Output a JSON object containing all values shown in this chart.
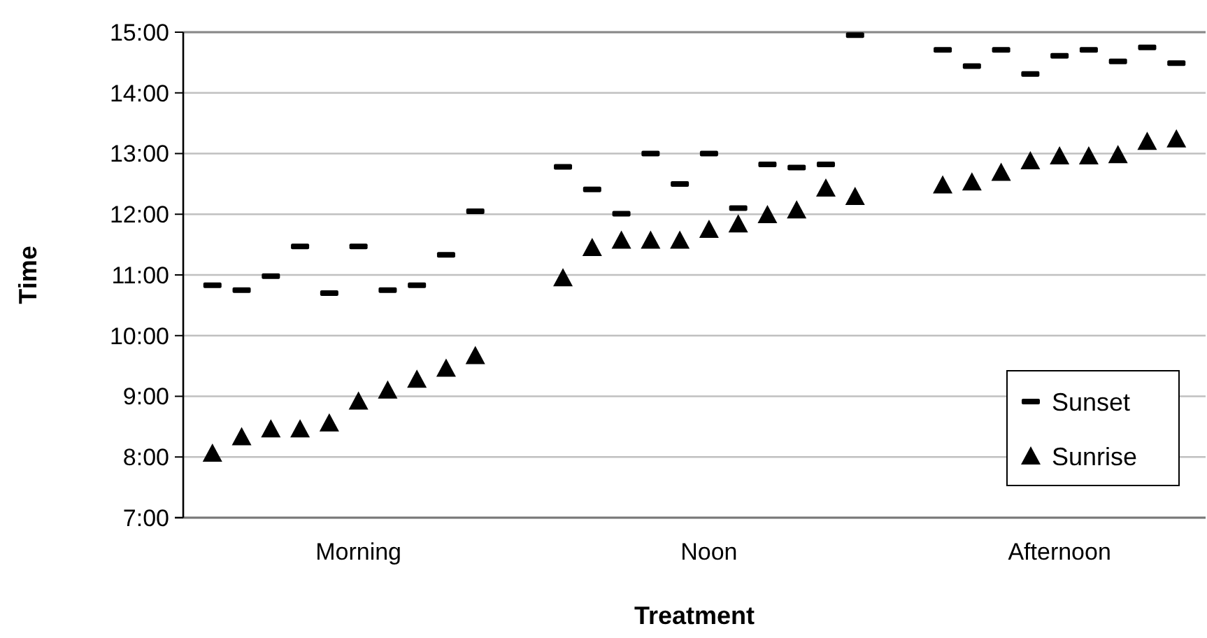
{
  "chart_data": {
    "type": "scatter",
    "xlabel": "Treatment",
    "ylabel": "Time",
    "categories": [
      null,
      null,
      null,
      null,
      null,
      "Morning",
      null,
      null,
      null,
      null,
      null,
      null,
      null,
      null,
      null,
      null,
      null,
      "Noon",
      null,
      null,
      null,
      null,
      null,
      null,
      null,
      null,
      null,
      null,
      null,
      "Afternoon",
      null,
      null,
      null,
      null
    ],
    "series": [
      {
        "name": "Sunset",
        "color": "#000000",
        "marker": "square",
        "values": [
          10.83,
          10.75,
          10.98,
          11.47,
          10.7,
          11.47,
          10.75,
          10.83,
          11.33,
          12.05,
          null,
          null,
          12.78,
          12.41,
          12.01,
          13.0,
          12.5,
          13.0,
          12.1,
          12.82,
          12.77,
          12.82,
          14.95,
          null,
          null,
          14.71,
          14.44,
          14.71,
          14.31,
          14.61,
          14.71,
          14.52,
          14.75,
          14.49
        ]
      },
      {
        "name": "Sunrise",
        "color": "#000000",
        "marker": "triangle",
        "values": [
          8.06,
          8.33,
          8.46,
          8.46,
          8.56,
          8.92,
          9.1,
          9.28,
          9.46,
          9.67,
          null,
          null,
          10.95,
          11.45,
          11.57,
          11.57,
          11.57,
          11.75,
          11.84,
          11.99,
          12.07,
          12.43,
          12.29,
          null,
          null,
          12.48,
          12.53,
          12.69,
          12.88,
          12.96,
          12.96,
          12.98,
          13.2,
          13.24
        ]
      }
    ],
    "ylim": [
      7,
      15
    ],
    "yticks": [
      {
        "value": 7,
        "label": "7:00"
      },
      {
        "value": 8,
        "label": "8:00"
      },
      {
        "value": 9,
        "label": "9:00"
      },
      {
        "value": 10,
        "label": "10:00"
      },
      {
        "value": 11,
        "label": "11:00"
      },
      {
        "value": 12,
        "label": "12:00"
      },
      {
        "value": 13,
        "label": "13:00"
      },
      {
        "value": 14,
        "label": "14:00"
      },
      {
        "value": 15,
        "label": "15:00"
      }
    ],
    "grid": "y",
    "legend": "bottom right"
  }
}
